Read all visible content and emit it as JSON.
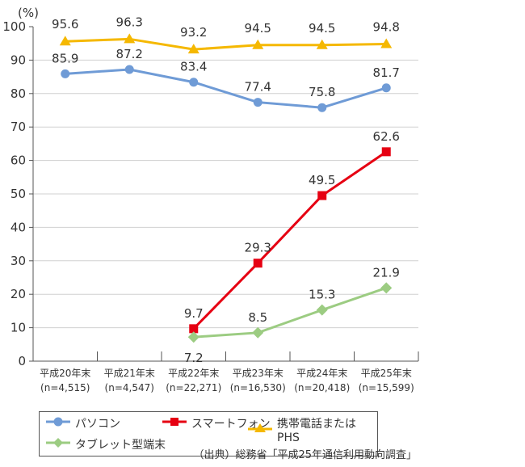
{
  "chart_data": {
    "type": "line",
    "ylabel": "(%)",
    "ylim": [
      0,
      100
    ],
    "yticks": [
      0,
      10,
      20,
      30,
      40,
      50,
      60,
      70,
      80,
      90,
      100
    ],
    "grid": true,
    "categories": [
      "平成20年末",
      "平成21年末",
      "平成22年末",
      "平成23年末",
      "平成24年末",
      "平成25年末"
    ],
    "category_n": [
      "(n=4,515)",
      "(n=4,547)",
      "(n=22,271)",
      "(n=16,530)",
      "(n=20,418)",
      "(n=15,599)"
    ],
    "series": [
      {
        "name": "パソコン",
        "color": "#6f9bd6",
        "marker": "circle",
        "values": [
          85.9,
          87.2,
          83.4,
          77.4,
          75.8,
          81.7
        ],
        "labels": [
          "85.9",
          "87.2",
          "83.4",
          "77.4",
          "75.8",
          "81.7"
        ]
      },
      {
        "name": "スマートフォン",
        "color": "#e60012",
        "marker": "square",
        "values": [
          null,
          null,
          9.7,
          29.3,
          49.5,
          62.6
        ],
        "labels": [
          null,
          null,
          "9.7",
          "29.3",
          "49.5",
          "62.6"
        ]
      },
      {
        "name": "携帯電話またはPHS",
        "color": "#f5b800",
        "marker": "triangle",
        "values": [
          95.6,
          96.3,
          93.2,
          94.5,
          94.5,
          94.8
        ],
        "labels": [
          "95.6",
          "96.3",
          "93.2",
          "94.5",
          "94.5",
          "94.8"
        ]
      },
      {
        "name": "タブレット型端末",
        "color": "#9ccc82",
        "marker": "diamond",
        "values": [
          null,
          null,
          7.2,
          8.5,
          15.3,
          21.9
        ],
        "labels": [
          null,
          null,
          "7.2",
          "8.5",
          "15.3",
          "21.9"
        ]
      }
    ],
    "legend_position": "bottom"
  },
  "source": "（出典）総務省「平成25年通信利用動向調査」"
}
